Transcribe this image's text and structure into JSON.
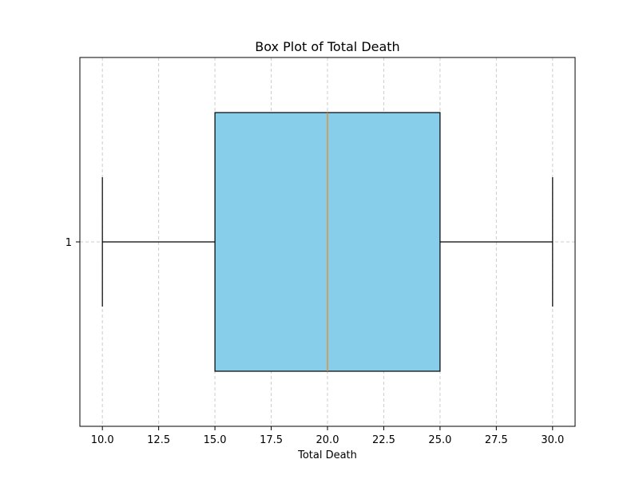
{
  "chart_data": {
    "type": "box",
    "title": "Box Plot of Total Death",
    "xlabel": "Total Death",
    "ylabel": "",
    "orientation": "horizontal",
    "xlim": [
      9.0,
      31.0
    ],
    "x_ticks": [
      10.0,
      12.5,
      15.0,
      17.5,
      20.0,
      22.5,
      25.0,
      27.5,
      30.0
    ],
    "x_tick_labels": [
      "10.0",
      "12.5",
      "15.0",
      "17.5",
      "20.0",
      "22.5",
      "25.0",
      "27.5",
      "30.0"
    ],
    "y_ticks": [
      "1"
    ],
    "grid": true,
    "grid_style": "dashed",
    "boxes": [
      {
        "position": "1",
        "whisker_low": 10.0,
        "q1": 15.0,
        "median": 20.0,
        "q3": 25.0,
        "whisker_high": 30.0
      }
    ],
    "colors": {
      "box_fill": "#87ceeb",
      "box_edge": "#000000",
      "median": "#ff7f0e",
      "grid": "#cccccc"
    }
  }
}
